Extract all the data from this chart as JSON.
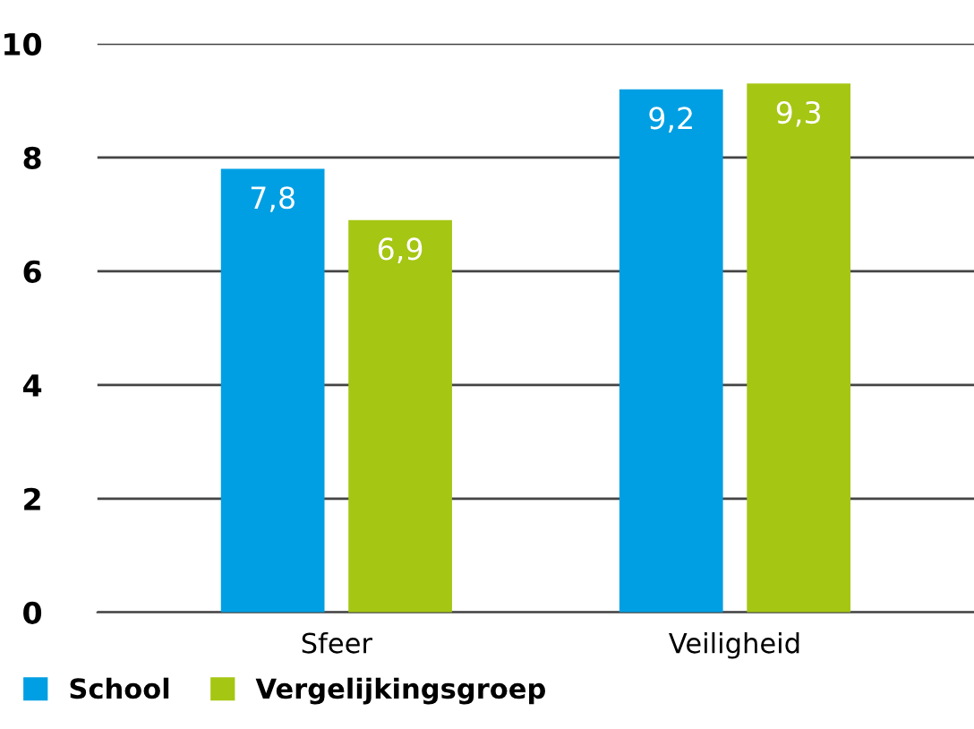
{
  "chart_data": {
    "type": "bar",
    "categories": [
      "Sfeer",
      "Veiligheid"
    ],
    "series": [
      {
        "name": "School",
        "color": "#009fe3",
        "values": [
          7.8,
          9.2
        ],
        "value_labels": [
          "7,8",
          "9,2"
        ]
      },
      {
        "name": "Vergelijkingsgroep",
        "color": "#a5c613",
        "values": [
          6.9,
          9.3
        ],
        "value_labels": [
          "6,9",
          "9,3"
        ]
      }
    ],
    "ylim": [
      0,
      10
    ],
    "yticks": [
      0,
      2,
      4,
      6,
      8,
      10
    ],
    "grid": "y",
    "legend": "bottom left"
  }
}
